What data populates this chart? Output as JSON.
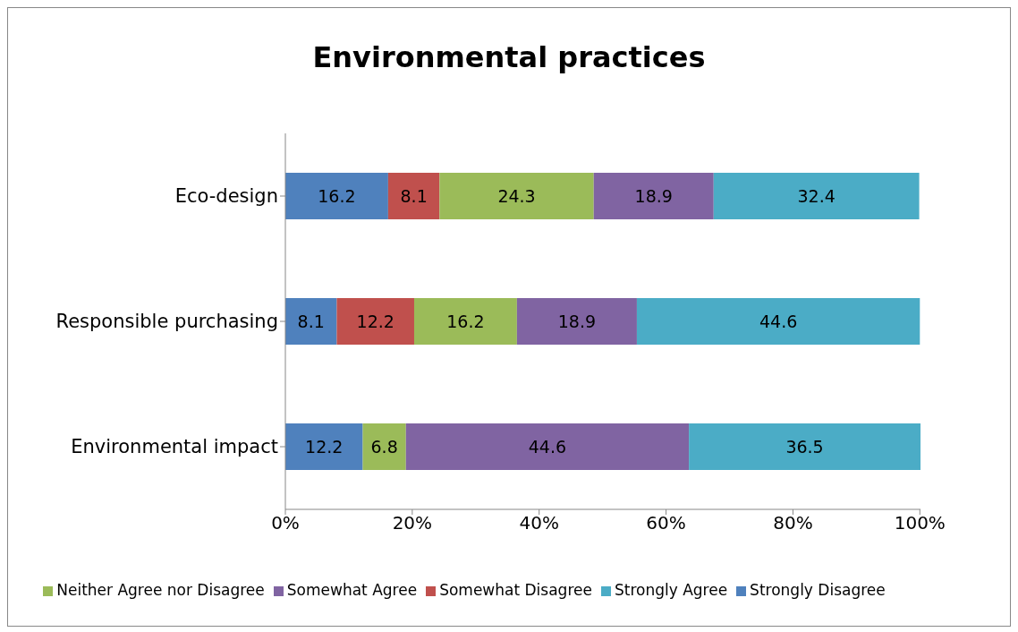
{
  "chart_data": {
    "type": "bar",
    "title": "Environmental practices",
    "orientation": "horizontal",
    "stacked": true,
    "categories": [
      "Eco-design",
      "Responsible purchasing",
      "Environmental impact"
    ],
    "series": [
      {
        "name": "Strongly Disagree",
        "color": "#4f81bd",
        "values": [
          16.2,
          8.1,
          12.2
        ]
      },
      {
        "name": "Somewhat Disagree",
        "color": "#c0504d",
        "values": [
          8.1,
          12.2,
          null
        ]
      },
      {
        "name": "Neither Agree nor Disagree",
        "color": "#9bbb59",
        "values": [
          24.3,
          16.2,
          6.8
        ]
      },
      {
        "name": "Somewhat Agree",
        "color": "#8064a2",
        "values": [
          18.9,
          18.9,
          44.6
        ]
      },
      {
        "name": "Strongly Agree",
        "color": "#4bacc6",
        "values": [
          32.4,
          44.6,
          36.5
        ]
      }
    ],
    "xlim": [
      0,
      100.1
    ],
    "xticks": [
      {
        "value": 0,
        "label": "0%"
      },
      {
        "value": 20,
        "label": "20%"
      },
      {
        "value": 40,
        "label": "40%"
      },
      {
        "value": 60,
        "label": "60%"
      },
      {
        "value": 80,
        "label": "80%"
      },
      {
        "value": 100,
        "label": "100%"
      }
    ],
    "data_labels": true,
    "legend": "bottom",
    "grid": false
  }
}
